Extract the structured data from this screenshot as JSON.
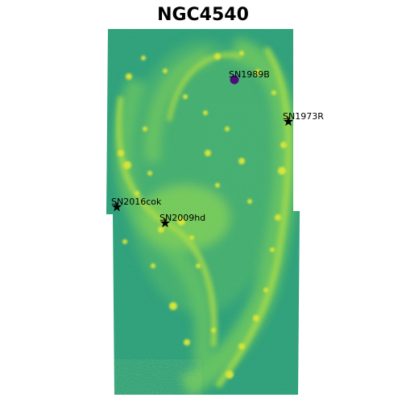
{
  "title": "NGC4540",
  "colors": {
    "background_field": "#2a9f7c",
    "diffuse_glow": "#5cc36a",
    "bright_knots": "#d2e33a",
    "marker_star": "#000000",
    "marker_circle": "#4b0f78"
  },
  "supernovae": [
    {
      "name": "SN1989B",
      "marker": "circle"
    },
    {
      "name": "SN1973R",
      "marker": "star"
    },
    {
      "name": "SN2016cok",
      "marker": "star"
    },
    {
      "name": "SN2009hd",
      "marker": "star"
    }
  ]
}
